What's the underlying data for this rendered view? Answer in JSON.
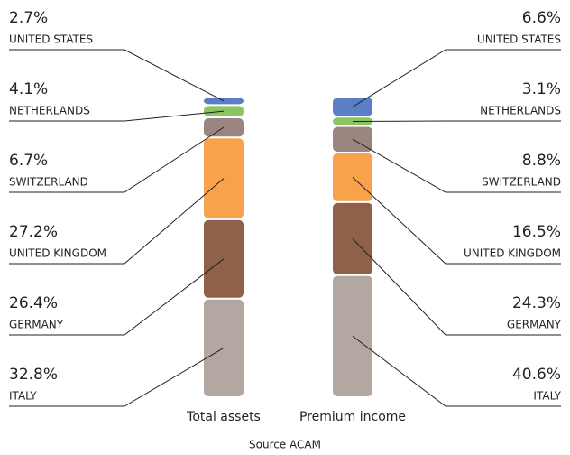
{
  "chart_data": {
    "type": "stacked_bar",
    "categories": [
      "Total assets",
      "Premium income"
    ],
    "series": [
      {
        "name": "UNITED STATES",
        "color": "#5b7fc7",
        "values": [
          2.7,
          6.6
        ],
        "value_labels": [
          "2.7%",
          "6.6%"
        ]
      },
      {
        "name": "NETHERLANDS",
        "color": "#8cc461",
        "values": [
          4.1,
          3.1
        ],
        "value_labels": [
          "4.1%",
          "3.1%"
        ]
      },
      {
        "name": "SWITZERLAND",
        "color": "#9b8580",
        "values": [
          6.7,
          8.8
        ],
        "value_labels": [
          "6.7%",
          "8.8%"
        ]
      },
      {
        "name": "UNITED KINGDOM",
        "color": "#f8a34c",
        "values": [
          27.2,
          16.5
        ],
        "value_labels": [
          "27.2%",
          "16.5%"
        ]
      },
      {
        "name": "GERMANY",
        "color": "#8f6149",
        "values": [
          26.4,
          24.3
        ],
        "value_labels": [
          "26.4%",
          "24.3%"
        ]
      },
      {
        "name": "ITALY",
        "color": "#b3a7a2",
        "values": [
          32.8,
          40.6
        ],
        "value_labels": [
          "32.8%",
          "40.6%"
        ]
      }
    ],
    "source": "Source ACAM"
  }
}
